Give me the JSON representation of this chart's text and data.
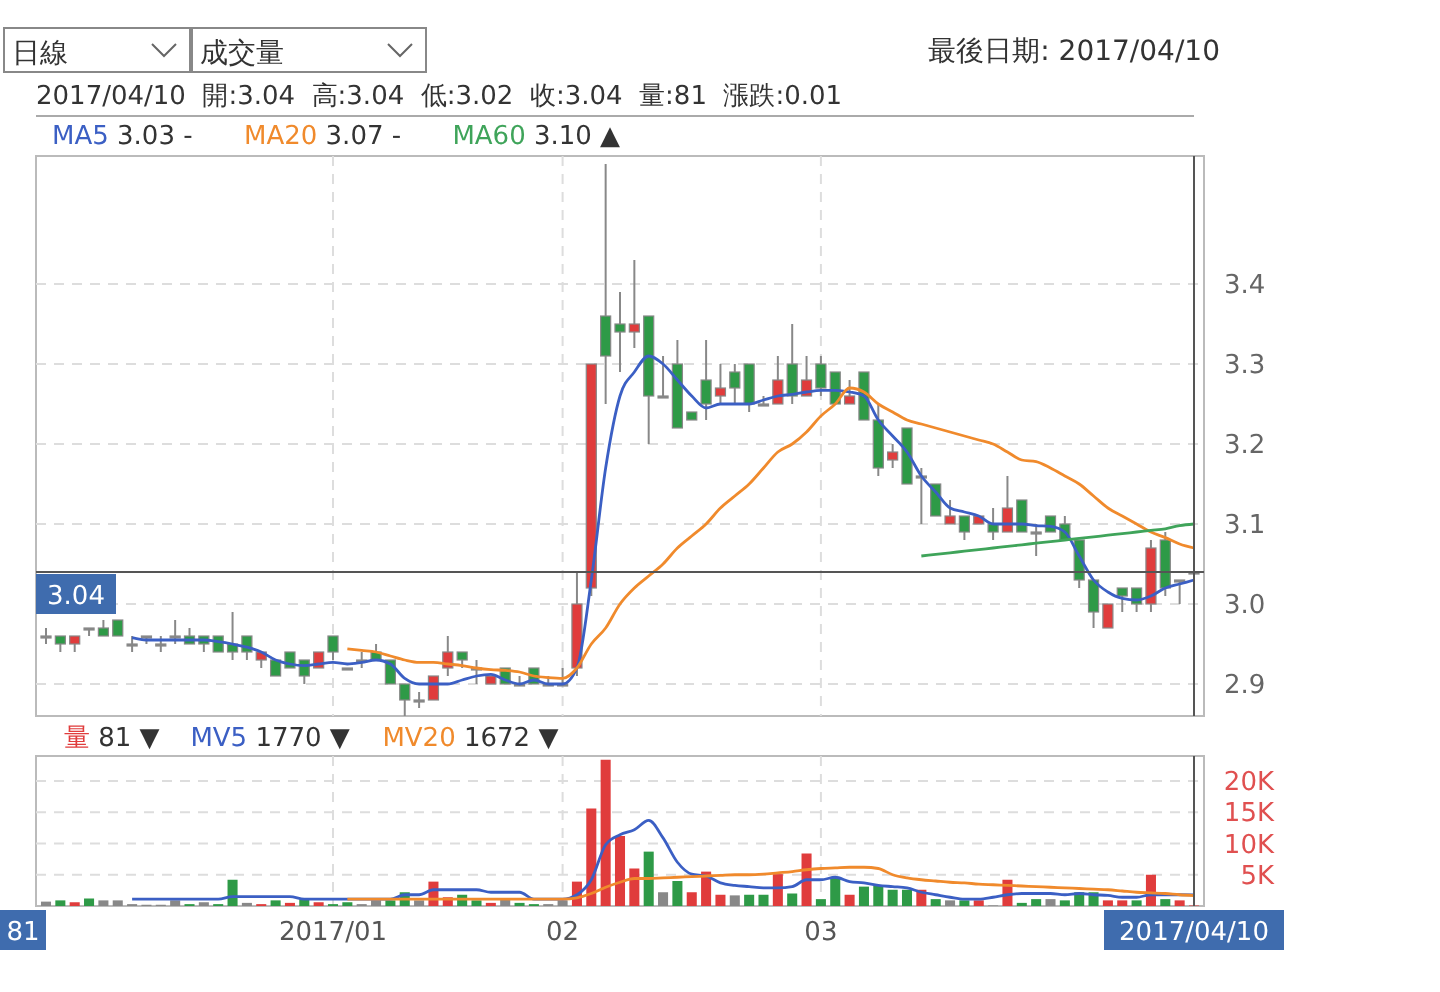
{
  "chart_data": [
    {
      "type": "candlestick",
      "annotations": [
        "日線",
        "成交量",
        "最後日期: 2017/04/10",
        "2017/04/10  開:3.04  高:3.04  低:3.02  收:3.04  量:81  漲跌:0.01",
        "3.03 -",
        "3.07 -",
        "3.10 ▲"
      ],
      "categories": [
        null,
        null,
        null,
        null,
        null,
        null,
        null,
        null,
        null,
        null,
        null,
        null,
        null,
        null,
        null,
        null,
        null,
        null,
        null,
        null,
        "2017/01",
        null,
        null,
        null,
        null,
        null,
        null,
        null,
        null,
        null,
        null,
        null,
        null,
        null,
        null,
        null,
        "02",
        null,
        null,
        null,
        null,
        null,
        null,
        null,
        null,
        null,
        null,
        null,
        null,
        null,
        null,
        null,
        null,
        null,
        "03",
        null,
        null,
        null,
        null,
        null,
        null,
        null,
        null,
        null,
        null,
        null,
        null,
        null,
        null,
        null,
        null,
        null,
        null,
        null,
        null,
        null,
        null,
        null,
        null,
        null,
        "2017/04/10"
      ],
      "ohlc": [
        [
          2.96,
          2.97,
          2.95,
          2.96
        ],
        [
          2.96,
          2.96,
          2.94,
          2.95
        ],
        [
          2.95,
          2.96,
          2.94,
          2.96
        ],
        [
          2.97,
          2.97,
          2.96,
          2.97
        ],
        [
          2.97,
          2.98,
          2.96,
          2.96
        ],
        [
          2.98,
          2.98,
          2.96,
          2.96
        ],
        [
          2.95,
          2.96,
          2.94,
          2.95
        ],
        [
          2.96,
          2.96,
          2.95,
          2.96
        ],
        [
          2.95,
          2.96,
          2.94,
          2.95
        ],
        [
          2.96,
          2.98,
          2.95,
          2.96
        ],
        [
          2.96,
          2.97,
          2.95,
          2.95
        ],
        [
          2.96,
          2.96,
          2.94,
          2.95
        ],
        [
          2.96,
          2.96,
          2.94,
          2.94
        ],
        [
          2.95,
          2.99,
          2.93,
          2.94
        ],
        [
          2.96,
          2.96,
          2.93,
          2.94
        ],
        [
          2.93,
          2.94,
          2.92,
          2.94
        ],
        [
          2.93,
          2.93,
          2.91,
          2.91
        ],
        [
          2.94,
          2.94,
          2.92,
          2.92
        ],
        [
          2.93,
          2.93,
          2.9,
          2.91
        ],
        [
          2.92,
          2.94,
          2.92,
          2.94
        ],
        [
          2.96,
          2.96,
          2.93,
          2.94
        ],
        [
          2.92,
          2.92,
          2.92,
          2.92
        ],
        [
          2.93,
          2.94,
          2.92,
          2.93
        ],
        [
          2.94,
          2.95,
          2.93,
          2.93
        ],
        [
          2.93,
          2.93,
          2.9,
          2.9
        ],
        [
          2.9,
          2.9,
          2.86,
          2.88
        ],
        [
          2.88,
          2.89,
          2.87,
          2.88
        ],
        [
          2.88,
          2.91,
          2.88,
          2.91
        ],
        [
          2.92,
          2.96,
          2.91,
          2.94
        ],
        [
          2.94,
          2.94,
          2.92,
          2.93
        ],
        [
          2.92,
          2.93,
          2.9,
          2.92
        ],
        [
          2.9,
          2.91,
          2.9,
          2.91
        ],
        [
          2.92,
          2.92,
          2.9,
          2.9
        ],
        [
          2.9,
          2.91,
          2.9,
          2.9
        ],
        [
          2.92,
          2.92,
          2.9,
          2.9
        ],
        [
          2.9,
          2.91,
          2.9,
          2.9
        ],
        [
          2.9,
          2.92,
          2.9,
          2.9
        ],
        [
          2.92,
          3.04,
          2.91,
          3.0
        ],
        [
          3.02,
          3.3,
          3.01,
          3.3
        ],
        [
          3.36,
          3.55,
          3.25,
          3.31
        ],
        [
          3.35,
          3.39,
          3.29,
          3.34
        ],
        [
          3.34,
          3.43,
          3.32,
          3.35
        ],
        [
          3.36,
          3.36,
          3.2,
          3.26
        ],
        [
          3.26,
          3.31,
          3.26,
          3.26
        ],
        [
          3.3,
          3.33,
          3.22,
          3.22
        ],
        [
          3.24,
          3.24,
          3.23,
          3.23
        ],
        [
          3.28,
          3.33,
          3.23,
          3.25
        ],
        [
          3.26,
          3.3,
          3.25,
          3.27
        ],
        [
          3.29,
          3.3,
          3.25,
          3.27
        ],
        [
          3.3,
          3.3,
          3.24,
          3.25
        ],
        [
          3.25,
          3.26,
          3.25,
          3.25
        ],
        [
          3.25,
          3.31,
          3.25,
          3.28
        ],
        [
          3.3,
          3.35,
          3.25,
          3.26
        ],
        [
          3.26,
          3.31,
          3.26,
          3.28
        ],
        [
          3.3,
          3.31,
          3.26,
          3.27
        ],
        [
          3.29,
          3.29,
          3.25,
          3.25
        ],
        [
          3.25,
          3.28,
          3.25,
          3.26
        ],
        [
          3.29,
          3.29,
          3.23,
          3.23
        ],
        [
          3.23,
          3.25,
          3.16,
          3.17
        ],
        [
          3.18,
          3.2,
          3.17,
          3.19
        ],
        [
          3.22,
          3.22,
          3.15,
          3.15
        ],
        [
          3.16,
          3.17,
          3.1,
          3.16
        ],
        [
          3.15,
          3.15,
          3.11,
          3.11
        ],
        [
          3.1,
          3.13,
          3.1,
          3.11
        ],
        [
          3.11,
          3.11,
          3.08,
          3.09
        ],
        [
          3.1,
          3.11,
          3.1,
          3.11
        ],
        [
          3.1,
          3.12,
          3.08,
          3.09
        ],
        [
          3.09,
          3.16,
          3.09,
          3.12
        ],
        [
          3.13,
          3.13,
          3.09,
          3.09
        ],
        [
          3.09,
          3.1,
          3.06,
          3.09
        ],
        [
          3.11,
          3.11,
          3.09,
          3.09
        ],
        [
          3.1,
          3.11,
          3.08,
          3.08
        ],
        [
          3.08,
          3.08,
          3.02,
          3.03
        ],
        [
          3.03,
          3.03,
          2.97,
          2.99
        ],
        [
          2.97,
          3.0,
          2.97,
          3.0
        ],
        [
          3.02,
          3.02,
          2.99,
          3.01
        ],
        [
          3.02,
          3.02,
          2.99,
          3.0
        ],
        [
          3.0,
          3.08,
          2.99,
          3.07
        ],
        [
          3.08,
          3.09,
          3.01,
          3.02
        ],
        [
          3.03,
          3.03,
          3.0,
          3.03
        ],
        [
          3.04,
          3.04,
          3.02,
          3.04
        ]
      ],
      "colors": [
        "#888888",
        "#2e9a47",
        "#e03c3c",
        "#888888",
        "#2e9a47",
        "#2e9a47",
        "#888888",
        "#888888",
        "#888888",
        "#888888",
        "#2e9a47",
        "#2e9a47",
        "#2e9a47",
        "#2e9a47",
        "#2e9a47",
        "#e03c3c",
        "#2e9a47",
        "#2e9a47",
        "#2e9a47",
        "#e03c3c",
        "#2e9a47",
        "#888888",
        "#888888",
        "#2e9a47",
        "#2e9a47",
        "#2e9a47",
        "#888888",
        "#e03c3c",
        "#e03c3c",
        "#2e9a47",
        "#888888",
        "#e03c3c",
        "#2e9a47",
        "#888888",
        "#2e9a47",
        "#888888",
        "#888888",
        "#e03c3c",
        "#e03c3c",
        "#2e9a47",
        "#2e9a47",
        "#e03c3c",
        "#2e9a47",
        "#888888",
        "#2e9a47",
        "#2e9a47",
        "#2e9a47",
        "#e03c3c",
        "#2e9a47",
        "#2e9a47",
        "#888888",
        "#e03c3c",
        "#2e9a47",
        "#e03c3c",
        "#2e9a47",
        "#2e9a47",
        "#e03c3c",
        "#2e9a47",
        "#2e9a47",
        "#e03c3c",
        "#2e9a47",
        "#888888",
        "#2e9a47",
        "#e03c3c",
        "#2e9a47",
        "#e03c3c",
        "#2e9a47",
        "#e03c3c",
        "#2e9a47",
        "#888888",
        "#2e9a47",
        "#2e9a47",
        "#2e9a47",
        "#2e9a47",
        "#e03c3c",
        "#2e9a47",
        "#2e9a47",
        "#e03c3c",
        "#2e9a47",
        "#888888",
        "#888888"
      ],
      "series": [
        {
          "name": "MA5",
          "type": "line",
          "color": "#3b5fc4",
          "values": [
            null,
            null,
            null,
            null,
            null,
            null,
            2.958,
            2.955,
            2.955,
            2.955,
            2.955,
            2.955,
            2.953,
            2.95,
            2.946,
            2.94,
            2.93,
            2.925,
            2.923,
            2.925,
            2.927,
            2.925,
            2.927,
            2.93,
            2.925,
            2.907,
            2.9,
            2.9,
            2.9,
            2.905,
            2.91,
            2.912,
            2.905,
            2.9,
            2.905,
            2.9,
            2.9,
            2.92,
            3.03,
            3.17,
            3.26,
            3.29,
            3.31,
            3.3,
            3.28,
            3.26,
            3.245,
            3.25,
            3.25,
            3.25,
            3.255,
            3.26,
            3.262,
            3.265,
            3.267,
            3.267,
            3.265,
            3.26,
            3.23,
            3.21,
            3.19,
            3.16,
            3.14,
            3.12,
            3.115,
            3.11,
            3.1,
            3.1,
            3.1,
            3.098,
            3.097,
            3.09,
            3.06,
            3.03,
            3.015,
            3.007,
            3.005,
            3.01,
            3.02,
            3.025,
            3.03
          ]
        },
        {
          "name": "MA20",
          "type": "line",
          "color": "#f08a2c",
          "values": [
            null,
            null,
            null,
            null,
            null,
            null,
            null,
            null,
            null,
            null,
            null,
            null,
            null,
            null,
            null,
            null,
            null,
            null,
            null,
            null,
            null,
            2.944,
            2.942,
            2.94,
            2.935,
            2.93,
            2.927,
            2.927,
            2.925,
            2.923,
            2.92,
            2.918,
            2.917,
            2.915,
            2.91,
            2.908,
            2.907,
            2.92,
            2.95,
            2.97,
            3.0,
            3.02,
            3.035,
            3.05,
            3.07,
            3.085,
            3.1,
            3.12,
            3.135,
            3.15,
            3.17,
            3.19,
            3.2,
            3.215,
            3.235,
            3.25,
            3.27,
            3.265,
            3.25,
            3.24,
            3.23,
            3.225,
            3.22,
            3.215,
            3.21,
            3.205,
            3.2,
            3.19,
            3.18,
            3.178,
            3.17,
            3.16,
            3.15,
            3.135,
            3.12,
            3.11,
            3.1,
            3.09,
            3.083,
            3.075,
            3.07
          ]
        },
        {
          "name": "MA60",
          "type": "line",
          "color": "#3fa45a",
          "values": [
            null,
            null,
            null,
            null,
            null,
            null,
            null,
            null,
            null,
            null,
            null,
            null,
            null,
            null,
            null,
            null,
            null,
            null,
            null,
            null,
            null,
            null,
            null,
            null,
            null,
            null,
            null,
            null,
            null,
            null,
            null,
            null,
            null,
            null,
            null,
            null,
            null,
            null,
            null,
            null,
            null,
            null,
            null,
            null,
            null,
            null,
            null,
            null,
            null,
            null,
            null,
            null,
            null,
            null,
            null,
            null,
            null,
            null,
            null,
            null,
            null,
            3.06,
            3.062,
            3.064,
            3.066,
            3.068,
            3.07,
            3.072,
            3.074,
            3.076,
            3.078,
            3.08,
            3.082,
            3.084,
            3.086,
            3.088,
            3.09,
            3.092,
            3.094,
            3.098,
            3.1
          ]
        }
      ],
      "ylim": [
        2.86,
        3.56
      ],
      "yticks": [
        {
          "value": 2.9,
          "label": "2.9"
        },
        {
          "value": 3,
          "label": "3.0"
        },
        {
          "value": 3.1,
          "label": "3.1"
        },
        {
          "value": 3.2,
          "label": "3.2"
        },
        {
          "value": 3.3,
          "label": "3.3"
        },
        {
          "value": 3.4,
          "label": "3.4"
        }
      ],
      "ref_lines": [
        {
          "axis": "y",
          "value": 3.04,
          "label": "3.04"
        },
        {
          "axis": "x",
          "value": "2017/04/10"
        }
      ],
      "grid": true,
      "legend": "top left",
      "tick_labels": "y"
    },
    {
      "type": "bar",
      "annotations": [
        "81",
        "81 ▼",
        "1770 ▼",
        "1672 ▼"
      ],
      "categories": [
        null,
        null,
        null,
        null,
        null,
        null,
        null,
        null,
        null,
        null,
        null,
        null,
        null,
        null,
        null,
        null,
        null,
        null,
        null,
        null,
        "2017/01",
        null,
        null,
        null,
        null,
        null,
        null,
        null,
        null,
        null,
        null,
        null,
        null,
        null,
        null,
        null,
        "02",
        null,
        null,
        null,
        null,
        null,
        null,
        null,
        null,
        null,
        null,
        null,
        null,
        null,
        null,
        null,
        null,
        null,
        "03",
        null,
        null,
        null,
        null,
        null,
        null,
        null,
        null,
        null,
        null,
        null,
        null,
        null,
        null,
        null,
        null,
        null,
        null,
        null,
        null,
        null,
        null,
        null,
        null,
        null,
        "2017/04/10"
      ],
      "series": [
        {
          "name": "量",
          "type": "bar",
          "values": [
            700,
            900,
            600,
            1200,
            900,
            900,
            300,
            200,
            200,
            900,
            300,
            600,
            300,
            4200,
            500,
            300,
            900,
            500,
            1100,
            600,
            300,
            600,
            300,
            900,
            900,
            2200,
            900,
            3900,
            1400,
            1800,
            900,
            500,
            1100,
            500,
            300,
            300,
            900,
            3900,
            15600,
            23400,
            11200,
            6000,
            8700,
            2200,
            4000,
            2200,
            5500,
            1800,
            1700,
            1800,
            1800,
            5100,
            2000,
            8400,
            1100,
            4600,
            1800,
            3100,
            3300,
            2600,
            2600,
            2600,
            1100,
            900,
            900,
            900,
            100,
            4200,
            500,
            1100,
            1100,
            900,
            2200,
            2200,
            900,
            900,
            900,
            5000,
            1100,
            900,
            81
          ],
          "colors": [
            "#888888",
            "#2e9a47",
            "#e03c3c",
            "#2e9a47",
            "#888888",
            "#888888",
            "#888888",
            "#888888",
            "#888888",
            "#888888",
            "#2e9a47",
            "#888888",
            "#2e9a47",
            "#2e9a47",
            "#888888",
            "#e03c3c",
            "#2e9a47",
            "#e03c3c",
            "#2e9a47",
            "#e03c3c",
            "#2e9a47",
            "#2e9a47",
            "#888888",
            "#888888",
            "#2e9a47",
            "#2e9a47",
            "#888888",
            "#e03c3c",
            "#e03c3c",
            "#2e9a47",
            "#2e9a47",
            "#e03c3c",
            "#888888",
            "#2e9a47",
            "#2e9a47",
            "#888888",
            "#888888",
            "#e03c3c",
            "#e03c3c",
            "#e03c3c",
            "#e03c3c",
            "#e03c3c",
            "#2e9a47",
            "#888888",
            "#2e9a47",
            "#e03c3c",
            "#e03c3c",
            "#e03c3c",
            "#888888",
            "#2e9a47",
            "#2e9a47",
            "#e03c3c",
            "#2e9a47",
            "#e03c3c",
            "#2e9a47",
            "#2e9a47",
            "#e03c3c",
            "#2e9a47",
            "#2e9a47",
            "#2e9a47",
            "#2e9a47",
            "#e03c3c",
            "#2e9a47",
            "#888888",
            "#2e9a47",
            "#e03c3c",
            "#888888",
            "#e03c3c",
            "#2e9a47",
            "#2e9a47",
            "#888888",
            "#2e9a47",
            "#2e9a47",
            "#2e9a47",
            "#e03c3c",
            "#e03c3c",
            "#2e9a47",
            "#e03c3c",
            "#2e9a47",
            "#e03c3c",
            "#e03c3c"
          ]
        },
        {
          "name": "MV5",
          "type": "line",
          "color": "#3b5fc4",
          "values": [
            null,
            null,
            null,
            null,
            null,
            null,
            1100,
            1100,
            1100,
            1100,
            1100,
            1100,
            1100,
            1500,
            1500,
            1500,
            1500,
            1500,
            1100,
            1100,
            1100,
            1100,
            1100,
            1100,
            1100,
            1800,
            1800,
            2600,
            2600,
            2600,
            2600,
            2200,
            2200,
            2200,
            1100,
            1100,
            1100,
            1800,
            4200,
            9800,
            11400,
            12200,
            13700,
            10900,
            7000,
            5100,
            4800,
            3700,
            3300,
            3100,
            2900,
            2900,
            3100,
            4200,
            4200,
            4600,
            3900,
            3700,
            3300,
            3100,
            2900,
            2200,
            1800,
            1400,
            1100,
            1100,
            1400,
            1800,
            2000,
            2000,
            2000,
            1800,
            2000,
            1800,
            1700,
            1400,
            1400,
            1800,
            1800,
            1800,
            1770
          ]
        },
        {
          "name": "MV20",
          "type": "line",
          "color": "#f08a2c",
          "values": [
            null,
            null,
            null,
            null,
            null,
            null,
            null,
            null,
            null,
            null,
            null,
            null,
            null,
            null,
            null,
            null,
            null,
            null,
            null,
            null,
            null,
            1100,
            1100,
            1100,
            1100,
            1100,
            1100,
            1100,
            1100,
            1100,
            1100,
            1100,
            1100,
            1100,
            1100,
            1100,
            1100,
            1300,
            2000,
            3000,
            3800,
            4400,
            4400,
            4500,
            4600,
            4700,
            4800,
            4900,
            5000,
            5000,
            5100,
            5300,
            5500,
            5800,
            6000,
            6100,
            6200,
            6200,
            6000,
            5000,
            4500,
            4200,
            4000,
            3800,
            3700,
            3500,
            3400,
            3300,
            3200,
            3100,
            3000,
            2900,
            2800,
            2700,
            2600,
            2400,
            2200,
            2100,
            2000,
            1800,
            1672
          ]
        }
      ],
      "ylim": [
        0,
        24000
      ],
      "yticks": [
        {
          "value": 5000,
          "label": "5K"
        },
        {
          "value": 10000,
          "label": "10K"
        },
        {
          "value": 15000,
          "label": "15K"
        },
        {
          "value": 20000,
          "label": "20K"
        }
      ],
      "ref_lines": [
        {
          "axis": "x",
          "value": "2017/04/10"
        }
      ],
      "grid": true,
      "legend": "top left"
    }
  ]
}
